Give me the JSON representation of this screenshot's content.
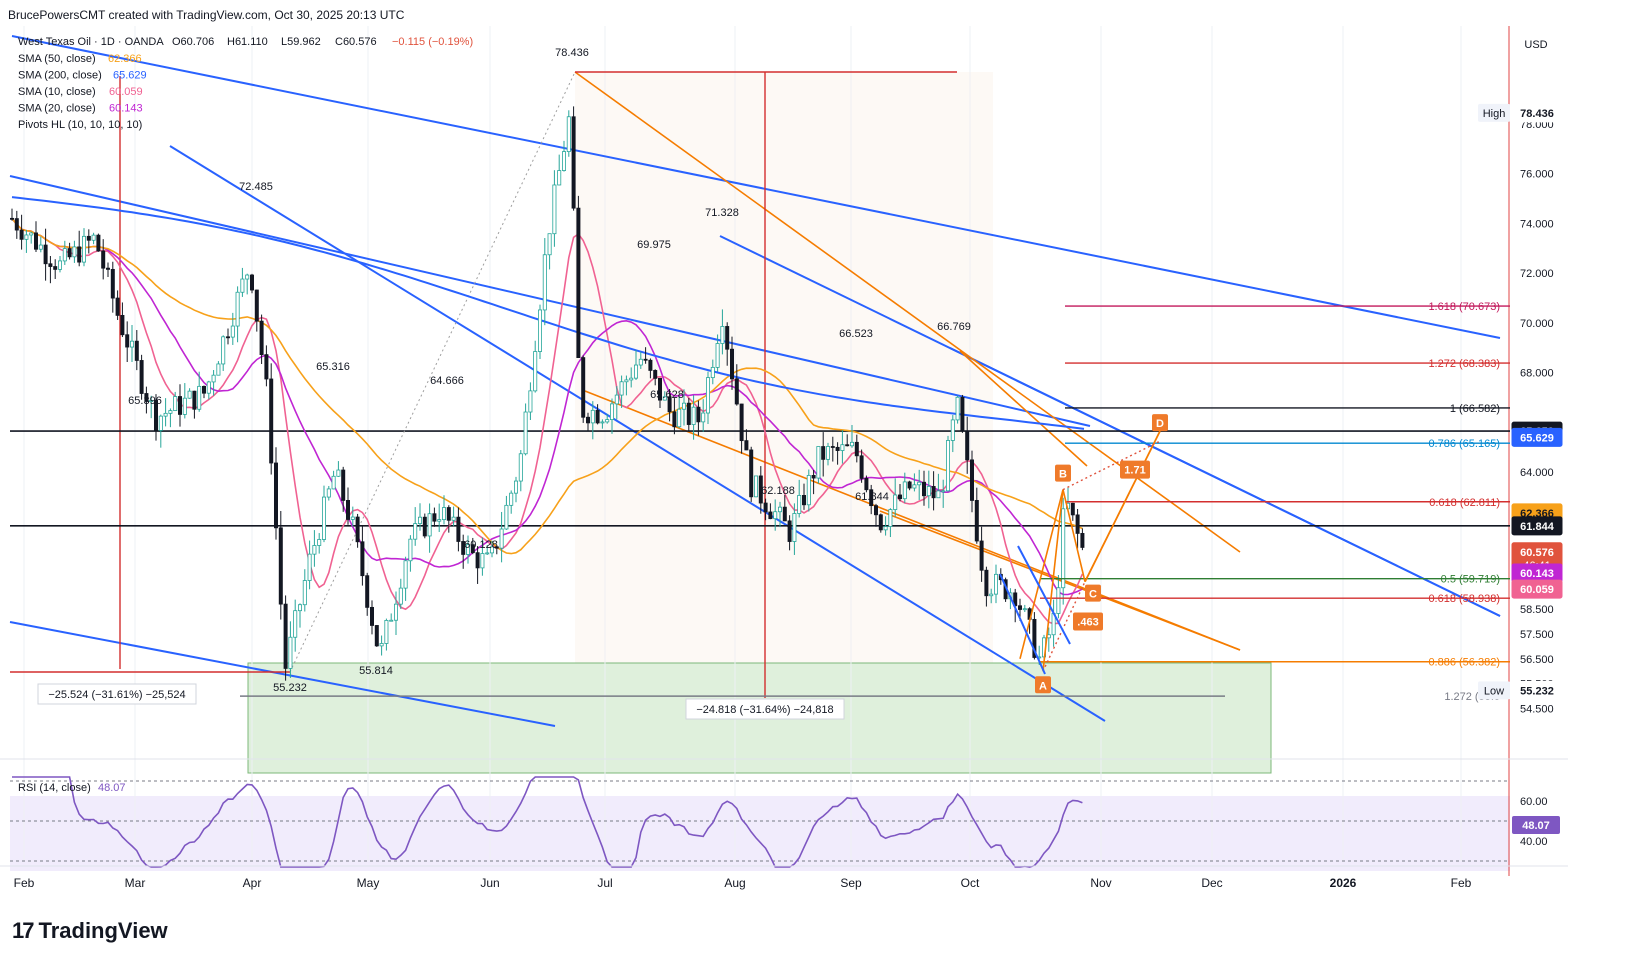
{
  "header": {
    "attribution": "BrucePowersCMT created with TradingView.com, Oct 30, 2025 20:13 UTC"
  },
  "legend": {
    "symbol": "West Texas Oil · 1D · OANDA",
    "o": "O60.706",
    "h": "H61.110",
    "l": "L59.962",
    "c": "C60.576",
    "chg": "−0.115 (−0.19%)",
    "studies": [
      {
        "label": "SMA (50, close)",
        "value": "62.366",
        "color": "#f7a11a"
      },
      {
        "label": "SMA (200, close)",
        "value": "65.629",
        "color": "#2962ff"
      },
      {
        "label": "SMA (10, close)",
        "value": "60.059",
        "color": "#f06292"
      },
      {
        "label": "SMA (20, close)",
        "value": "60.143",
        "color": "#c026d3"
      },
      {
        "label": "Pivots HL (10, 10, 10, 10)",
        "value": "",
        "color": "#131722"
      }
    ]
  },
  "price_axis": {
    "currency": "USD",
    "ticks": [
      "78.000",
      "76.000",
      "74.000",
      "72.000",
      "70.000",
      "68.000",
      "64.000",
      "61.000",
      "58.500",
      "57.500",
      "56.500",
      "55.500",
      "54.500"
    ],
    "badges": [
      {
        "label": "78.436",
        "tag": "High",
        "price": 78.436,
        "bg": "#ffffff",
        "fg": "#131722"
      },
      {
        "label": "65.650",
        "price": 65.65,
        "bg": "#131722",
        "fg": "#ffffff"
      },
      {
        "label": "65.629",
        "price": 65.4,
        "bg": "#2962ff",
        "fg": "#ffffff"
      },
      {
        "label": "62.366",
        "price": 62.366,
        "bg": "#f7a11a",
        "fg": "#131722"
      },
      {
        "label": "61.844",
        "price": 61.844,
        "bg": "#131722",
        "fg": "#ffffff"
      },
      {
        "label": "60.576",
        "sub": "46:41",
        "price": 60.8,
        "bg": "#e0533d",
        "fg": "#ffffff"
      },
      {
        "label": "60.143",
        "price": 59.95,
        "bg": "#c026d3",
        "fg": "#ffffff"
      },
      {
        "label": "60.059",
        "price": 59.3,
        "bg": "#f06292",
        "fg": "#ffffff"
      },
      {
        "label": "55.232",
        "tag": "Low",
        "price": 55.232,
        "bg": "#ffffff",
        "fg": "#131722"
      }
    ]
  },
  "time_axis": [
    "Feb",
    "Mar",
    "Apr",
    "May",
    "Jun",
    "Jul",
    "Aug",
    "Sep",
    "Oct",
    "Nov",
    "Dec",
    "2026",
    "Feb"
  ],
  "rsi": {
    "label": "RSI (14, close)",
    "value": "48.07",
    "ticks": [
      "60.00",
      "40.00"
    ],
    "badge": "48.07"
  },
  "chart_data": {
    "type": "candlestick",
    "title": "West Texas Oil · 1D · OANDA",
    "y_unit": "USD",
    "ylim": [
      53.8,
      80.0
    ],
    "pivot_labels": [
      {
        "t": 0.46,
        "text": "78.436",
        "price": 78.436
      },
      {
        "t": 0.0,
        "text": "72.485",
        "price": 72.485
      },
      {
        "t": 0.0,
        "text": "71.328",
        "price": 71.328
      },
      {
        "t": 0.0,
        "text": "69.975",
        "price": 69.975
      },
      {
        "t": 0.0,
        "text": "66.523",
        "price": 66.523
      },
      {
        "t": 0.0,
        "text": "66.769",
        "price": 66.769
      },
      {
        "t": 0.0,
        "text": "65.316",
        "price": 65.316
      },
      {
        "t": 0.0,
        "text": "64.666",
        "price": 64.666
      },
      {
        "t": 0.0,
        "text": "65.396",
        "price": 65.396
      },
      {
        "t": 0.0,
        "text": "65.628",
        "price": 65.628
      },
      {
        "t": 0.0,
        "text": "62.188",
        "price": 62.188
      },
      {
        "t": 0.0,
        "text": "61.844",
        "price": 61.844
      },
      {
        "t": 0.0,
        "text": "60.128",
        "price": 60.128
      },
      {
        "t": 0.0,
        "text": "55.814",
        "price": 55.814
      },
      {
        "t": 0.0,
        "text": "55.232",
        "price": 55.232
      }
    ],
    "fib_levels": [
      {
        "text": "1.618 (70.673)",
        "price": 70.673,
        "color": "#c2185b"
      },
      {
        "text": "1.272 (68.383)",
        "price": 68.383,
        "color": "#d32f2f"
      },
      {
        "text": "1 (66.582)",
        "price": 66.582,
        "color": "#131722"
      },
      {
        "text": "0.786 (65.165)",
        "price": 65.165,
        "color": "#0288d1"
      },
      {
        "text": "0.618 (62.811)",
        "price": 62.811,
        "color": "#d32f2f"
      },
      {
        "text": "0.5 (59.719)",
        "price": 59.719,
        "color": "#2e7d32"
      },
      {
        "text": "0.618 (58.938)",
        "price": 58.938,
        "color": "#d32f2f"
      },
      {
        "text": "0.886 (56.382)",
        "price": 56.382,
        "color": "#f57c00"
      },
      {
        "text": "1.272 (55.0",
        "price": 55.0,
        "color": "#787b86"
      }
    ],
    "pattern_points": [
      {
        "text": "A",
        "price": 56.0
      },
      {
        "text": "B",
        "price": 63.3
      },
      {
        "text": "C",
        "price": 59.6
      },
      {
        "text": "D",
        "price": 65.65
      }
    ],
    "pattern_ratios": [
      "1.71",
      ".463"
    ],
    "measurements": [
      "−25.524 (−31.61%) −25,524",
      "−24.818 (−31.64%) −24,818"
    ],
    "horizontal_levels": [
      65.65,
      61.844
    ]
  },
  "brand": {
    "name": "TradingView"
  }
}
